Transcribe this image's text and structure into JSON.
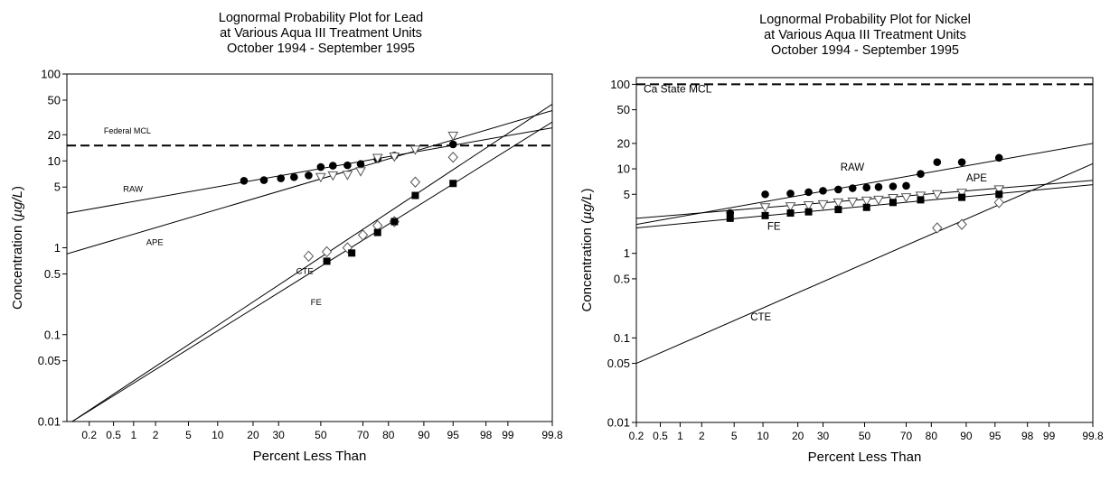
{
  "chart_data": [
    {
      "type": "scatter",
      "title": [
        "Lognormal Probability Plot for Lead",
        "at Various Aqua III Treatment Units",
        "October 1994 - September 1995"
      ],
      "xlabel": "Percent Less Than",
      "ylabel_prefix": "Concentration (",
      "ylabel_unit": "µg/L",
      "ylabel_suffix": ")",
      "x_scale": "probability",
      "y_scale": "log",
      "xlim": [
        0.08,
        99.8
      ],
      "ylim": [
        0.01,
        100
      ],
      "xticks": [
        0.2,
        0.5,
        1,
        2,
        5,
        10,
        20,
        30,
        50,
        70,
        80,
        90,
        95,
        98,
        99,
        99.8
      ],
      "xtick_labels": [
        "0.2",
        "0.5",
        "1",
        "2",
        "5",
        "10",
        "20",
        "30",
        "50",
        "70",
        "80",
        "90",
        "95",
        "98",
        "99",
        "99.8"
      ],
      "yticks": [
        0.01,
        0.05,
        0.1,
        0.5,
        1,
        5,
        10,
        20,
        50,
        100
      ],
      "ytick_labels": [
        "0.01",
        "0.05",
        "0.1",
        "0.5",
        "1",
        "5",
        "10",
        "20",
        "50",
        "100"
      ],
      "grid": false,
      "reference_line": {
        "label": "Federal MCL",
        "value": 15
      },
      "series": [
        {
          "name": "RAW",
          "marker": "filled-circle",
          "fit": [
            [
              0.08,
              2.5
            ],
            [
              99.8,
              24
            ]
          ],
          "x": [
            17,
            24,
            31,
            37,
            44,
            50,
            56,
            63,
            69,
            76,
            82,
            95
          ],
          "y": [
            5.9,
            6.0,
            6.3,
            6.5,
            6.8,
            8.5,
            8.8,
            8.9,
            9.2,
            10.5,
            11.5,
            15.5
          ]
        },
        {
          "name": "APE",
          "marker": "open-triangle",
          "fit": [
            [
              0.08,
              0.85
            ],
            [
              99.8,
              38
            ]
          ],
          "x": [
            50,
            56,
            63,
            69,
            76,
            82,
            88,
            95
          ],
          "y": [
            6.5,
            6.8,
            6.9,
            7.6,
            10.8,
            11.2,
            13.5,
            19.5
          ]
        },
        {
          "name": "CTE",
          "marker": "open-diamond",
          "fit": [
            [
              0.1,
              0.01
            ],
            [
              99.8,
              45
            ]
          ],
          "x": [
            44,
            53,
            63,
            70,
            76,
            82,
            88,
            95
          ],
          "y": [
            0.8,
            0.9,
            1.0,
            1.4,
            1.8,
            2.0,
            5.7,
            11
          ]
        },
        {
          "name": "FE",
          "marker": "filled-square",
          "fit": [
            [
              0.1,
              0.01
            ],
            [
              99.8,
              28
            ]
          ],
          "x": [
            53,
            65,
            76,
            82,
            88,
            95
          ],
          "y": [
            0.7,
            0.87,
            1.5,
            2.0,
            4.0,
            5.5
          ]
        }
      ]
    },
    {
      "type": "scatter",
      "title": [
        "Lognormal Probability Plot for Nickel",
        "at Various Aqua III Treatment Units",
        "October 1994 - September 1995"
      ],
      "xlabel": "Percent Less Than",
      "ylabel_prefix": "Concentration (",
      "ylabel_unit": "µg/L",
      "ylabel_suffix": ")",
      "x_scale": "probability",
      "y_scale": "log",
      "xlim": [
        0.2,
        99.8
      ],
      "ylim": [
        0.01,
        120
      ],
      "xticks": [
        0.2,
        0.5,
        1,
        2,
        5,
        10,
        20,
        30,
        50,
        70,
        80,
        90,
        95,
        98,
        99,
        99.8
      ],
      "xtick_labels": [
        "0.2",
        "0.5",
        "1",
        "2",
        "5",
        "10",
        "20",
        "30",
        "50",
        "70",
        "80",
        "90",
        "95",
        "98",
        "99",
        "99.8"
      ],
      "yticks": [
        0.01,
        0.05,
        0.1,
        0.5,
        1,
        5,
        10,
        20,
        50,
        100
      ],
      "ytick_labels": [
        "0.01",
        "0.05",
        "0.1",
        "0.5",
        "1",
        "5",
        "10",
        "20",
        "50",
        "100"
      ],
      "grid": false,
      "reference_line": {
        "label": "Ca State MCL",
        "value": 100
      },
      "series": [
        {
          "name": "RAW",
          "marker": "filled-circle",
          "fit": [
            [
              0.2,
              2.2
            ],
            [
              99.8,
              20
            ]
          ],
          "x": [
            4.5,
            10.5,
            17.5,
            24,
            30,
            37,
            44,
            51,
            57,
            64,
            70,
            76,
            82,
            89,
            95.5
          ],
          "y": [
            3.0,
            5.0,
            5.1,
            5.3,
            5.5,
            5.7,
            5.9,
            6.0,
            6.1,
            6.2,
            6.3,
            8.7,
            12,
            12,
            13.5
          ]
        },
        {
          "name": "APE",
          "marker": "open-triangle",
          "fit": [
            [
              0.2,
              2.6
            ],
            [
              99.8,
              7.3
            ]
          ],
          "x": [
            10.5,
            17.5,
            24,
            30,
            37,
            44,
            51,
            57,
            64,
            70,
            76,
            82,
            89,
            95.5
          ],
          "y": [
            3.5,
            3.6,
            3.7,
            3.8,
            4.0,
            4.1,
            4.2,
            4.3,
            4.5,
            4.6,
            4.8,
            5.0,
            5.2,
            5.7
          ]
        },
        {
          "name": "CTE",
          "marker": "open-diamond",
          "fit": [
            [
              0.2,
              0.05
            ],
            [
              99.8,
              11.5
            ]
          ],
          "x": [
            82,
            89,
            95.5
          ],
          "y": [
            2.0,
            2.2,
            4.0
          ]
        },
        {
          "name": "FE",
          "marker": "filled-square",
          "fit": [
            [
              0.2,
              2.0
            ],
            [
              99.8,
              6.5
            ]
          ],
          "x": [
            4.5,
            10.5,
            17.5,
            24,
            37,
            51,
            64,
            76,
            89,
            95.5
          ],
          "y": [
            2.6,
            2.8,
            3.0,
            3.1,
            3.3,
            3.5,
            4.0,
            4.3,
            4.6,
            5.0
          ]
        }
      ]
    }
  ]
}
